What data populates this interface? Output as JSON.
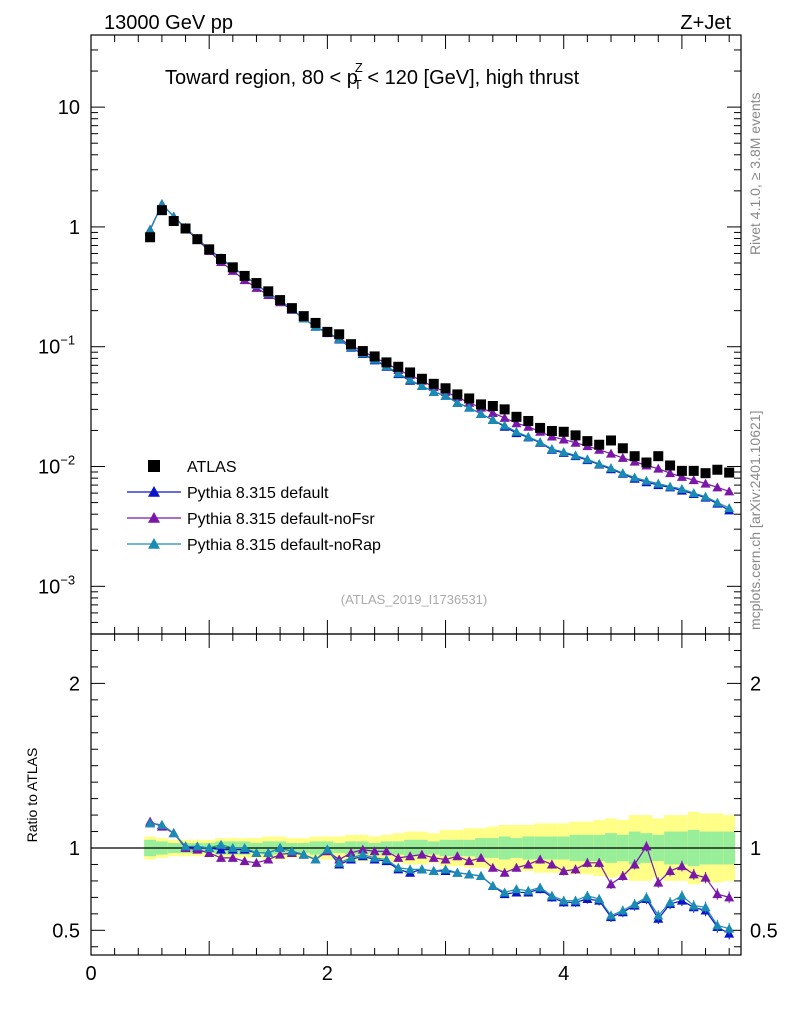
{
  "header": {
    "energy_label": "13000 GeV pp",
    "process_label": "Z+Jet",
    "title_part1": "Toward region, 80 < p",
    "title_sup": "Z",
    "title_sub": "T",
    "title_part2": " < 120 [GeV], high thrust",
    "watermark": "(ATLAS_2019_I1736531)",
    "side_rivet": "Rivet 4.1.0, ≥ 3.8M events",
    "side_mcplots": "mcplots.cern.ch [arXiv:2401.10621]"
  },
  "legend": [
    {
      "label": "ATLAS",
      "color": "#000000",
      "marker": "square"
    },
    {
      "label": "Pythia 8.315 default",
      "color": "#0a14c8",
      "marker": "triangle"
    },
    {
      "label": "Pythia 8.315 default-noFsr",
      "color": "#7a17a8",
      "marker": "triangle"
    },
    {
      "label": "Pythia 8.315 default-noRap",
      "color": "#1a8cb4",
      "marker": "triangle"
    }
  ],
  "chart_data": {
    "type": "scatter",
    "xlim": [
      0,
      5.5
    ],
    "ylim_main": [
      0.0004,
      40
    ],
    "ylim_ratio": [
      0.35,
      2.3
    ],
    "yscale_main": "log",
    "x_ticks": [
      "0",
      "2",
      "4"
    ],
    "main_y_ticks": [
      {
        "value": 10,
        "base": "10",
        "exp": ""
      },
      {
        "value": 1,
        "base": "1",
        "exp": ""
      },
      {
        "value": 0.1,
        "base": "10",
        "exp": "−1"
      },
      {
        "value": 0.01,
        "base": "10",
        "exp": "−2"
      },
      {
        "value": 0.001,
        "base": "10",
        "exp": "−3"
      }
    ],
    "ratio_y_ticks": [
      "2",
      "1",
      "0.5"
    ],
    "ratio_ylabel": "Ratio to ATLAS",
    "x": [
      0.5,
      0.6,
      0.7,
      0.8,
      0.9,
      1.0,
      1.1,
      1.2,
      1.3,
      1.4,
      1.5,
      1.6,
      1.7,
      1.8,
      1.9,
      2.0,
      2.1,
      2.2,
      2.3,
      2.4,
      2.5,
      2.6,
      2.7,
      2.8,
      2.9,
      3.0,
      3.1,
      3.2,
      3.3,
      3.4,
      3.5,
      3.6,
      3.7,
      3.8,
      3.9,
      4.0,
      4.1,
      4.2,
      4.3,
      4.4,
      4.5,
      4.6,
      4.7,
      4.8,
      4.9,
      5.0,
      5.1,
      5.2,
      5.3,
      5.4
    ],
    "atlas": [
      0.82,
      1.38,
      1.12,
      0.97,
      0.79,
      0.65,
      0.54,
      0.46,
      0.39,
      0.34,
      0.29,
      0.245,
      0.21,
      0.18,
      0.158,
      0.133,
      0.127,
      0.105,
      0.092,
      0.083,
      0.074,
      0.068,
      0.061,
      0.054,
      0.049,
      0.045,
      0.04,
      0.037,
      0.033,
      0.032,
      0.03,
      0.026,
      0.024,
      0.021,
      0.0198,
      0.0195,
      0.0182,
      0.0163,
      0.0152,
      0.0165,
      0.0142,
      0.0122,
      0.0108,
      0.0122,
      0.0102,
      0.0092,
      0.0092,
      0.0088,
      0.0094,
      0.0089
    ],
    "series": [
      {
        "name": "Pythia 8.315 default",
        "values": [
          0.94,
          1.55,
          1.22,
          0.98,
          0.79,
          0.65,
          0.54,
          0.46,
          0.39,
          0.33,
          0.28,
          0.245,
          0.205,
          0.172,
          0.147,
          0.131,
          0.115,
          0.098,
          0.087,
          0.077,
          0.068,
          0.059,
          0.052,
          0.047,
          0.042,
          0.039,
          0.034,
          0.031,
          0.0275,
          0.0245,
          0.0215,
          0.019,
          0.0175,
          0.0158,
          0.0138,
          0.013,
          0.0122,
          0.0113,
          0.0104,
          0.0095,
          0.0087,
          0.0079,
          0.0074,
          0.007,
          0.0067,
          0.0063,
          0.0059,
          0.0055,
          0.0049,
          0.0043
        ]
      },
      {
        "name": "Pythia 8.315 default-noFsr",
        "values": [
          0.95,
          1.55,
          1.22,
          0.97,
          0.78,
          0.63,
          0.51,
          0.43,
          0.36,
          0.31,
          0.27,
          0.235,
          0.203,
          0.172,
          0.147,
          0.13,
          0.118,
          0.102,
          0.092,
          0.081,
          0.073,
          0.064,
          0.058,
          0.052,
          0.046,
          0.042,
          0.038,
          0.034,
          0.031,
          0.028,
          0.0255,
          0.023,
          0.0215,
          0.0195,
          0.0178,
          0.0168,
          0.0158,
          0.0148,
          0.0138,
          0.0128,
          0.0118,
          0.011,
          0.0102,
          0.0096,
          0.0088,
          0.0082,
          0.0077,
          0.0072,
          0.0067,
          0.0062
        ]
      },
      {
        "name": "Pythia 8.315 default-noRap",
        "values": [
          0.94,
          1.55,
          1.22,
          0.98,
          0.8,
          0.65,
          0.55,
          0.46,
          0.39,
          0.33,
          0.28,
          0.245,
          0.205,
          0.172,
          0.147,
          0.132,
          0.116,
          0.099,
          0.088,
          0.078,
          0.069,
          0.06,
          0.053,
          0.047,
          0.042,
          0.039,
          0.034,
          0.031,
          0.0275,
          0.0245,
          0.022,
          0.0195,
          0.0177,
          0.016,
          0.014,
          0.0132,
          0.0124,
          0.0115,
          0.0105,
          0.0097,
          0.0088,
          0.0081,
          0.0076,
          0.0072,
          0.0068,
          0.0065,
          0.006,
          0.0056,
          0.005,
          0.0045
        ]
      }
    ],
    "ratios": [
      [
        1.15,
        1.14,
        1.09,
        1.01,
        1.0,
        1.0,
        0.99,
        0.99,
        0.99,
        0.97,
        0.97,
        1.0,
        0.98,
        0.96,
        0.93,
        0.99,
        0.9,
        0.93,
        0.95,
        0.93,
        0.92,
        0.87,
        0.85,
        0.87,
        0.86,
        0.86,
        0.85,
        0.84,
        0.83,
        0.77,
        0.72,
        0.73,
        0.73,
        0.75,
        0.7,
        0.67,
        0.67,
        0.69,
        0.68,
        0.58,
        0.61,
        0.65,
        0.69,
        0.57,
        0.66,
        0.68,
        0.64,
        0.62,
        0.52,
        0.48
      ],
      [
        1.16,
        1.13,
        1.09,
        1.0,
        0.99,
        0.97,
        0.94,
        0.94,
        0.92,
        0.91,
        0.93,
        0.96,
        0.97,
        0.96,
        0.93,
        0.98,
        0.93,
        0.97,
        0.99,
        0.98,
        0.98,
        0.94,
        0.95,
        0.96,
        0.94,
        0.93,
        0.95,
        0.92,
        0.94,
        0.88,
        0.85,
        0.88,
        0.9,
        0.93,
        0.9,
        0.86,
        0.87,
        0.91,
        0.91,
        0.78,
        0.83,
        0.9,
        1.01,
        0.79,
        0.86,
        0.89,
        0.84,
        0.82,
        0.72,
        0.7
      ],
      [
        1.15,
        1.14,
        1.09,
        1.01,
        1.01,
        1.0,
        1.02,
        1.0,
        1.0,
        0.97,
        0.97,
        1.0,
        0.98,
        0.96,
        0.93,
        0.99,
        0.91,
        0.94,
        0.96,
        0.94,
        0.93,
        0.88,
        0.87,
        0.87,
        0.86,
        0.87,
        0.85,
        0.84,
        0.83,
        0.77,
        0.73,
        0.75,
        0.74,
        0.76,
        0.71,
        0.68,
        0.68,
        0.71,
        0.69,
        0.59,
        0.62,
        0.66,
        0.7,
        0.59,
        0.67,
        0.71,
        0.65,
        0.64,
        0.53,
        0.51
      ]
    ],
    "unc_green": [
      0.05,
      0.04,
      0.03,
      0.03,
      0.03,
      0.03,
      0.04,
      0.04,
      0.04,
      0.03,
      0.04,
      0.04,
      0.03,
      0.03,
      0.04,
      0.04,
      0.03,
      0.04,
      0.04,
      0.03,
      0.04,
      0.04,
      0.05,
      0.05,
      0.04,
      0.05,
      0.05,
      0.05,
      0.06,
      0.06,
      0.07,
      0.06,
      0.07,
      0.07,
      0.07,
      0.07,
      0.08,
      0.08,
      0.08,
      0.09,
      0.08,
      0.1,
      0.09,
      0.08,
      0.1,
      0.1,
      0.11,
      0.1,
      0.1,
      0.1
    ],
    "unc_yellow": [
      0.07,
      0.06,
      0.05,
      0.05,
      0.05,
      0.05,
      0.06,
      0.06,
      0.06,
      0.06,
      0.07,
      0.07,
      0.06,
      0.06,
      0.07,
      0.07,
      0.07,
      0.08,
      0.08,
      0.07,
      0.08,
      0.09,
      0.1,
      0.1,
      0.09,
      0.11,
      0.11,
      0.12,
      0.12,
      0.13,
      0.14,
      0.14,
      0.14,
      0.15,
      0.15,
      0.15,
      0.16,
      0.16,
      0.17,
      0.18,
      0.17,
      0.2,
      0.2,
      0.18,
      0.2,
      0.2,
      0.22,
      0.21,
      0.21,
      0.2
    ]
  }
}
